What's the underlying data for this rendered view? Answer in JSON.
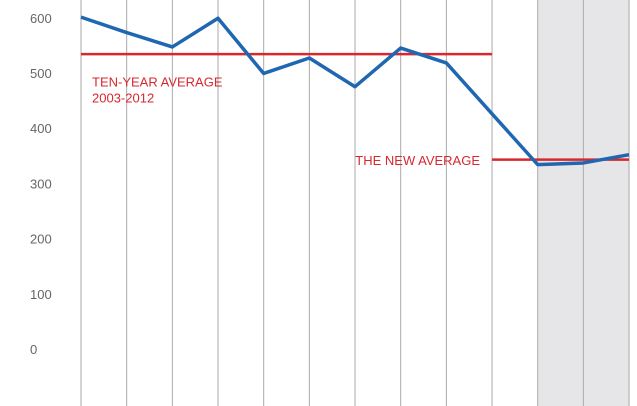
{
  "chart_data": {
    "type": "line",
    "categories": [
      null,
      null,
      null,
      null,
      null,
      null,
      null,
      null,
      null,
      null,
      null,
      null,
      null
    ],
    "series": [
      {
        "color": "#1f67b1",
        "values": [
          604,
          576,
          550,
          602,
          502,
          530,
          478,
          548,
          521,
          429,
          337,
          340,
          355
        ]
      }
    ],
    "ylim": [
      -100,
      635
    ],
    "yticks": [
      0,
      100,
      200,
      300,
      400,
      500,
      600
    ],
    "reference_lines": [
      {
        "value": 537,
        "x_range": [
          0,
          9
        ],
        "color": "#d7282f",
        "label": [
          "TEN-YEAR AVERAGE",
          "2003-2012"
        ]
      },
      {
        "value": 346,
        "x_range": [
          9,
          12
        ],
        "color": "#d7282f",
        "label": [
          "THE NEW AVERAGE"
        ]
      }
    ]
  }
}
